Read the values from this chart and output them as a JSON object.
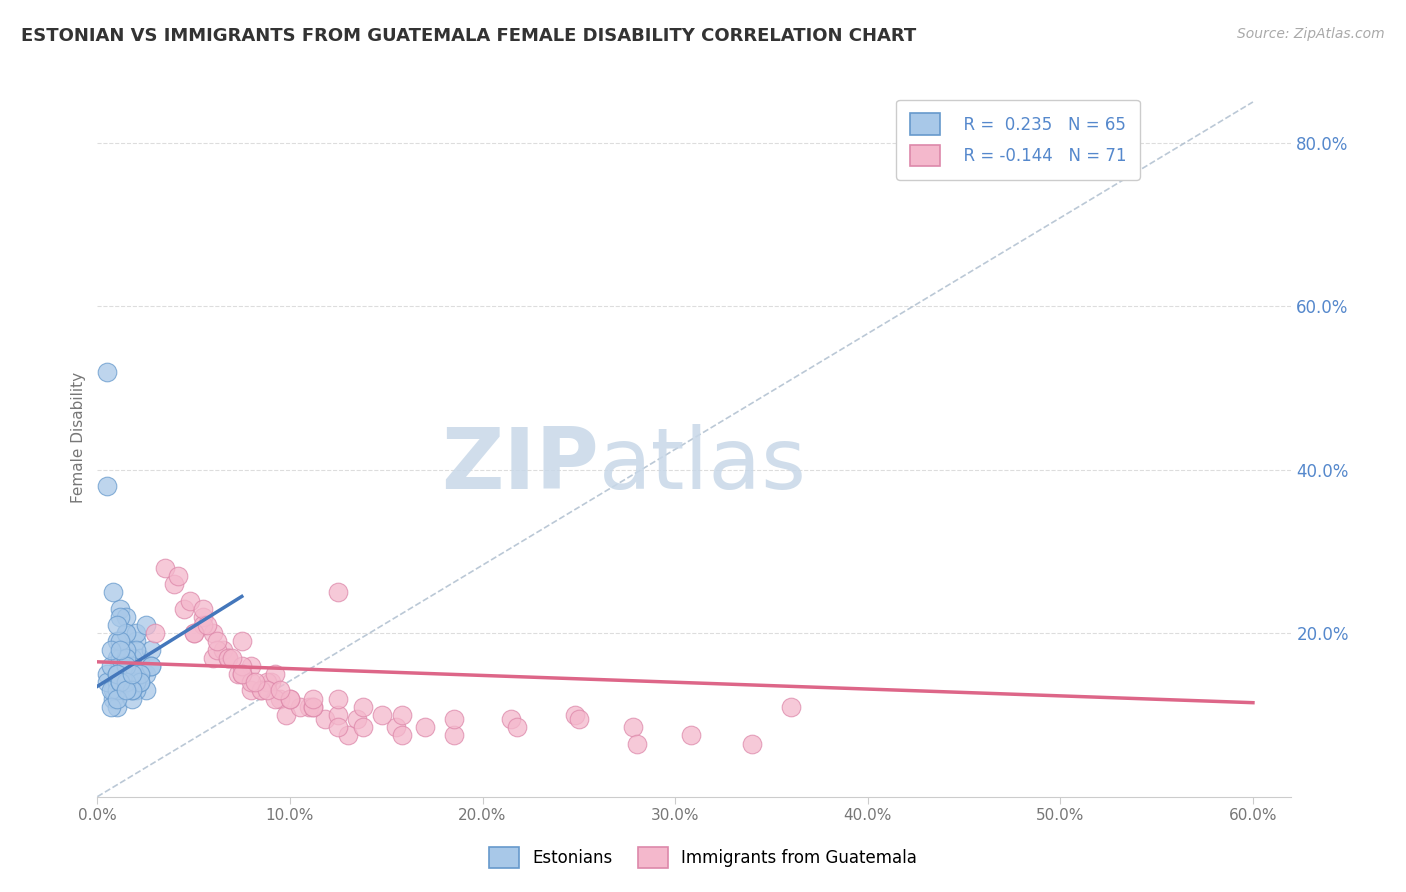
{
  "title": "ESTONIAN VS IMMIGRANTS FROM GUATEMALA FEMALE DISABILITY CORRELATION CHART",
  "source_text": "Source: ZipAtlas.com",
  "ylabel": "Female Disability",
  "xlim": [
    0.0,
    0.62
  ],
  "ylim": [
    0.0,
    0.88
  ],
  "xtick_labels": [
    "0.0%",
    "",
    "",
    "",
    "",
    "",
    "",
    "",
    "",
    "",
    "10.0%",
    "",
    "",
    "",
    "",
    "",
    "",
    "",
    "",
    "",
    "20.0%",
    "",
    "",
    "",
    "",
    "",
    "",
    "",
    "",
    "",
    "30.0%",
    "",
    "",
    "",
    "",
    "",
    "",
    "",
    "",
    "",
    "40.0%",
    "",
    "",
    "",
    "",
    "",
    "",
    "",
    "",
    "",
    "50.0%",
    "",
    "",
    "",
    "",
    "",
    "",
    "",
    "",
    "",
    "60.0%"
  ],
  "xtick_vals": [
    0.0,
    0.01,
    0.02,
    0.03,
    0.04,
    0.05,
    0.06,
    0.07,
    0.08,
    0.09,
    0.1,
    0.11,
    0.12,
    0.13,
    0.14,
    0.15,
    0.16,
    0.17,
    0.18,
    0.19,
    0.2,
    0.21,
    0.22,
    0.23,
    0.24,
    0.25,
    0.26,
    0.27,
    0.28,
    0.29,
    0.3,
    0.31,
    0.32,
    0.33,
    0.34,
    0.35,
    0.36,
    0.37,
    0.38,
    0.39,
    0.4,
    0.41,
    0.42,
    0.43,
    0.44,
    0.45,
    0.46,
    0.47,
    0.48,
    0.49,
    0.5,
    0.51,
    0.52,
    0.53,
    0.54,
    0.55,
    0.56,
    0.57,
    0.58,
    0.59,
    0.6
  ],
  "xtick_major": [
    0.0,
    0.1,
    0.2,
    0.3,
    0.4,
    0.5,
    0.6
  ],
  "xtick_major_labels": [
    "0.0%",
    "10.0%",
    "20.0%",
    "30.0%",
    "40.0%",
    "50.0%",
    "60.0%"
  ],
  "ytick_right": [
    0.2,
    0.4,
    0.6,
    0.8
  ],
  "ytick_right_labels": [
    "20.0%",
    "40.0%",
    "60.0%",
    "80.0%"
  ],
  "ytick_gridlines": [
    0.2,
    0.4,
    0.6,
    0.8
  ],
  "blue_color": "#a8c8e8",
  "pink_color": "#f4b8cc",
  "blue_edge_color": "#6699cc",
  "pink_edge_color": "#dd88aa",
  "blue_line_color": "#4477bb",
  "pink_line_color": "#dd6688",
  "ref_line_color": "#aabbcc",
  "grid_color": "#dddddd",
  "background_color": "#ffffff",
  "watermark_color": "#c8d8e8",
  "title_color": "#333333",
  "right_axis_color": "#5588cc",
  "blue_scatter_x": [
    0.005,
    0.008,
    0.01,
    0.012,
    0.015,
    0.018,
    0.02,
    0.022,
    0.025,
    0.028,
    0.01,
    0.012,
    0.015,
    0.018,
    0.02,
    0.005,
    0.025,
    0.015,
    0.02,
    0.025,
    0.008,
    0.012,
    0.018,
    0.01,
    0.015,
    0.005,
    0.012,
    0.008,
    0.02,
    0.028,
    0.01,
    0.015,
    0.022,
    0.012,
    0.018,
    0.007,
    0.015,
    0.01,
    0.022,
    0.012,
    0.005,
    0.018,
    0.01,
    0.015,
    0.028,
    0.012,
    0.007,
    0.02,
    0.022,
    0.015,
    0.01,
    0.012,
    0.007,
    0.018,
    0.015,
    0.022,
    0.01,
    0.012,
    0.015,
    0.018,
    0.007,
    0.012,
    0.01,
    0.015,
    0.018
  ],
  "blue_scatter_y": [
    0.15,
    0.12,
    0.17,
    0.14,
    0.2,
    0.16,
    0.19,
    0.17,
    0.13,
    0.18,
    0.11,
    0.23,
    0.14,
    0.17,
    0.2,
    0.38,
    0.15,
    0.22,
    0.18,
    0.21,
    0.13,
    0.16,
    0.15,
    0.19,
    0.17,
    0.14,
    0.15,
    0.25,
    0.13,
    0.16,
    0.14,
    0.18,
    0.14,
    0.22,
    0.16,
    0.16,
    0.2,
    0.13,
    0.15,
    0.17,
    0.52,
    0.12,
    0.15,
    0.14,
    0.16,
    0.19,
    0.13,
    0.14,
    0.15,
    0.17,
    0.21,
    0.14,
    0.18,
    0.13,
    0.16,
    0.14,
    0.15,
    0.18,
    0.14,
    0.13,
    0.11,
    0.14,
    0.12,
    0.13,
    0.15
  ],
  "pink_scatter_x": [
    0.03,
    0.045,
    0.06,
    0.075,
    0.04,
    0.09,
    0.055,
    0.08,
    0.035,
    0.065,
    0.085,
    0.048,
    0.095,
    0.06,
    0.073,
    0.042,
    0.11,
    0.055,
    0.088,
    0.068,
    0.125,
    0.08,
    0.098,
    0.05,
    0.135,
    0.062,
    0.092,
    0.075,
    0.155,
    0.055,
    0.105,
    0.068,
    0.118,
    0.085,
    0.13,
    0.05,
    0.148,
    0.075,
    0.1,
    0.062,
    0.17,
    0.08,
    0.112,
    0.092,
    0.185,
    0.057,
    0.125,
    0.088,
    0.215,
    0.07,
    0.138,
    0.1,
    0.248,
    0.075,
    0.158,
    0.112,
    0.278,
    0.082,
    0.185,
    0.125,
    0.308,
    0.095,
    0.218,
    0.138,
    0.34,
    0.112,
    0.25,
    0.158,
    0.36,
    0.125,
    0.28
  ],
  "pink_scatter_y": [
    0.2,
    0.23,
    0.17,
    0.19,
    0.26,
    0.14,
    0.22,
    0.16,
    0.28,
    0.18,
    0.13,
    0.24,
    0.12,
    0.2,
    0.15,
    0.27,
    0.11,
    0.21,
    0.14,
    0.17,
    0.25,
    0.13,
    0.1,
    0.2,
    0.095,
    0.18,
    0.12,
    0.15,
    0.085,
    0.23,
    0.11,
    0.17,
    0.095,
    0.13,
    0.075,
    0.2,
    0.1,
    0.16,
    0.12,
    0.19,
    0.085,
    0.14,
    0.11,
    0.15,
    0.075,
    0.21,
    0.1,
    0.13,
    0.095,
    0.17,
    0.085,
    0.12,
    0.1,
    0.15,
    0.075,
    0.11,
    0.085,
    0.14,
    0.095,
    0.12,
    0.075,
    0.13,
    0.085,
    0.11,
    0.065,
    0.12,
    0.095,
    0.1,
    0.11,
    0.085,
    0.065
  ],
  "blue_trend_x": [
    0.0,
    0.075
  ],
  "blue_trend_y": [
    0.135,
    0.245
  ],
  "pink_trend_x": [
    0.0,
    0.6
  ],
  "pink_trend_y": [
    0.165,
    0.115
  ],
  "ref_line_x": [
    0.0,
    0.6
  ],
  "ref_line_y": [
    0.0,
    0.85
  ]
}
